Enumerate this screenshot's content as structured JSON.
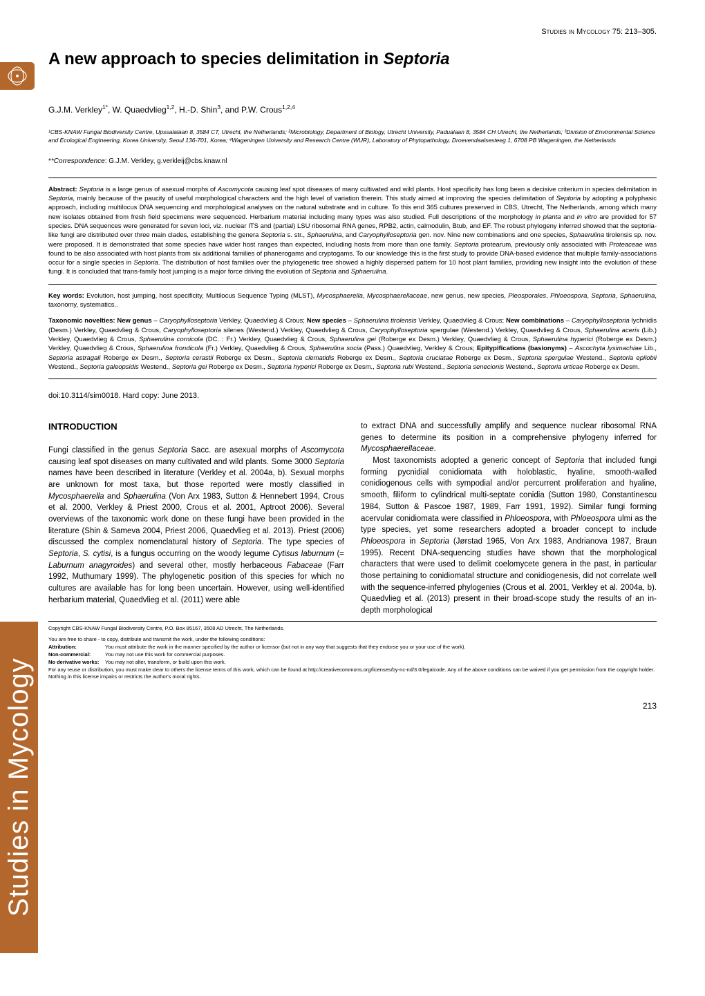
{
  "journal_header": "Studies in Mycology 75: 213–305.",
  "title_plain": "A new approach to species delimitation in ",
  "title_italic": "Septoria",
  "authors_html": "G.J.M. Verkley<sup>1*</sup>, W. Quaedvlieg<sup>1,2</sup>, H.-D. Shin<sup>3</sup>, and P.W. Crous<sup>1,2,4</sup>",
  "affiliations": "¹CBS-KNAW Fungal Biodiversity Centre, Upssalalaan 8, 3584 CT, Utrecht, the Netherlands; ²Microbiology, Department of Biology, Utrecht University, Padualaan 8, 3584 CH Utrecht, the Netherlands; ³Division of Environmental Science and Ecological Engineering, Korea University, Seoul 136-701, Korea; ⁴Wageningen University and Research Centre (WUR), Laboratory of Phytopathology, Droevendaalsesteeg 1, 6708 PB Wageningen, the Netherlands",
  "correspondence_label": "*Correspondence",
  "correspondence_value": ": G.J.M. Verkley, g.verkleij@cbs.knaw.nl",
  "abstract_label": "Abstract:",
  "abstract_body": "Septoria is a large genus of asexual morphs of Ascomycota causing leaf spot diseases of many cultivated and wild plants. Host specificity has long been a decisive criterium in species delimitation in Septoria, mainly because of the paucity of useful morphological characters and the high level of variation therein. This study aimed at improving the species delimitation of Septoria by adopting a polyphasic approach, including multilocus DNA sequencing and morphological analyses on the natural substrate and in culture. To this end 365 cultures preserved in CBS, Utrecht, The Netherlands, among which many new isolates obtained from fresh field specimens were sequenced. Herbarium material including many types was also studied. Full descriptions of the morphology in planta and in vitro are provided for 57 species. DNA sequences were generated for seven loci, viz. nuclear ITS and (partial) LSU ribosomal RNA genes, RPB2, actin, calmodulin, Btub, and EF. The robust phylogeny inferred showed that the septoria-like fungi are distributed over three main clades, establishing the genera Septoria s. str., Sphaerulina, and Caryophylloseptoria gen. nov. Nine new combinations and one species, Sphaerulina tirolensis sp. nov. were proposed. It is demonstrated that some species have wider host ranges than expected, including hosts from more than one family. Septoria protearum, previously only associated with Proteaceae was found to be also associated with host plants from six additional families of phanerogams and cryptogams. To our knowledge this is the first study to provide DNA-based evidence that multiple family-associations occur for a single species in Septoria. The distribution of host families over the phylogenetic tree showed a highly dispersed pattern for 10 host plant families, providing new insight into the evolution of these fungi. It is concluded that trans-family host jumping is a major force driving the evolution of Septoria and Sphaerulina.",
  "keywords_label": "Key words:",
  "keywords_body": "Evolution, host jumping, host specificity, Multilocus Sequence Typing (MLST), Mycosphaerella, Mycosphaerellaceae, new genus, new species, Pleosporales, Phloeospora, Septoria, Sphaerulina, taxonomy, systematics..",
  "taxnov_label": "Taxonomic novelties:",
  "taxnov_body": "New genus – Caryophylloseptoria Verkley, Quaedvlieg & Crous; New species – Sphaerulina tirolensis Verkley, Quaedvlieg & Crous; New combinations – Caryophylloseptoria lychnidis (Desm.) Verkley, Quaedvlieg & Crous, Caryophylloseptoria silenes (Westend.) Verkley, Quaedvlieg & Crous, Caryophylloseptoria spergulae (Westend.) Verkley, Quaedvlieg & Crous, Sphaerulina aceris (Lib.) Verkley, Quaedvlieg & Crous, Sphaerulina cornicola (DC. : Fr.) Verkley, Quaedvlieg & Crous, Sphaerulina gei (Roberge ex Desm.) Verkley, Quaedvlieg & Crous, Sphaerulina hyperici (Roberge ex Desm.) Verkley, Quaedvlieg & Crous, Sphaerulina frondicola (Fr.) Verkley, Quaedvlieg & Crous, Sphaerulina socia (Pass.) Quaedvlieg, Verkley & Crous; Epitypifications (basionyms) – Ascochyta lysimachiae Lib., Septoria astragali Roberge ex Desm., Septoria cerastii Roberge ex Desm., Septoria clematidis Roberge ex Desm., Septoria cruciatae Roberge ex Desm., Septoria spergulae Westend., Septoria epilobii Westend., Septoria galeopsidis Westend., Septoria gei Roberge ex Desm., Septoria hyperici Roberge ex Desm., Septoria rubi Westend., Septoria senecionis Westend., Septoria urticae Roberge ex Desm.",
  "doi_line": "doi:10.3114/sim0018. Hard copy: June 2013.",
  "introduction_heading": "INTRODUCTION",
  "intro_col1": "Fungi classified in the genus Septoria Sacc. are asexual morphs of Ascomycota causing leaf spot diseases on many cultivated and wild plants. Some 3000 Septoria names have been described in literature (Verkley et al. 2004a, b). Sexual morphs are unknown for most taxa, but those reported were mostly classified in Mycosphaerella and Sphaerulina (Von Arx 1983, Sutton & Hennebert 1994, Crous et al. 2000, Verkley & Priest 2000, Crous et al. 2001, Aptroot 2006). Several overviews of the taxonomic work done on these fungi have been provided in the literature (Shin & Sameva 2004, Priest 2006, Quaedvlieg et al. 2013). Priest (2006) discussed the complex nomenclatural history of Septoria. The type species of Septoria, S. cytisi, is a fungus occurring on the woody legume Cytisus laburnum (= Laburnum anagyroides) and several other, mostly herbaceous Fabaceae (Farr 1992, Muthumary 1999). The phylogenetic position of this species for which no cultures are available has for long been uncertain. However, using well-identified herbarium material, Quaedvlieg et al. (2011) were able",
  "intro_col2_top": "to extract DNA and successfully amplify and sequence nuclear ribosomal RNA genes to determine its position in a comprehensive phylogeny inferred for Mycosphaerellaceae.",
  "intro_col2_p2": "Most taxonomists adopted a generic concept of Septoria that included fungi forming pycnidial conidiomata with holoblastic, hyaline, smooth-walled conidiogenous cells with sympodial and/or percurrent proliferation and hyaline, smooth, filiform to cylindrical multi-septate conidia (Sutton 1980, Constantinescu 1984, Sutton & Pascoe 1987, 1989, Farr 1991, 1992). Similar fungi forming acervular conidiomata were classified in Phloeospora, with Phloeospora ulmi as the type species, yet some researchers adopted a broader concept to include Phloeospora in Septoria (Jørstad 1965, Von Arx 1983, Andrianova 1987, Braun 1995). Recent DNA-sequencing studies have shown that the morphological characters that were used to delimit coelomycete genera in the past, in particular those pertaining to conidiomatal structure and conidiogenesis, did not correlate well with the sequence-inferred phylogenies (Crous et al. 2001, Verkley et al. 2004a, b). Quaedvlieg et al. (2013) present in their broad-scope study the results of an in-depth morphological",
  "sidebar_label": "Studies in Mycology",
  "copyright_line": "Copyright CBS-KNAW Fungal Biodiversity Centre, P.O. Box 85167, 3508 AD Utrecht, The Netherlands.",
  "license_intro": "You are free to share - to copy, distribute and transmit the work, under the following conditions:",
  "license_rows": [
    {
      "label": "Attribution:",
      "text": "You must attribute the work in the manner specified by the author or licensor (but not in any way that suggests that they endorse you or your use of the work)."
    },
    {
      "label": "Non-commercial:",
      "text": "You may not use this work for commercial purposes."
    },
    {
      "label": "No derivative works:",
      "text": "You may not alter, transform, or build upon this work."
    }
  ],
  "license_footer": "For any reuse or distribution, you must make clear to others the license terms of this work, which can be found at http://creativecommons.org/licenses/by-nc-nd/3.0/legalcode. Any of the above conditions can be waived if you get permission from the copyright holder. Nothing in this license impairs or restricts the author's moral rights.",
  "page_number": "213",
  "colors": {
    "brand": "#b3672c",
    "text": "#000000",
    "background": "#ffffff"
  }
}
